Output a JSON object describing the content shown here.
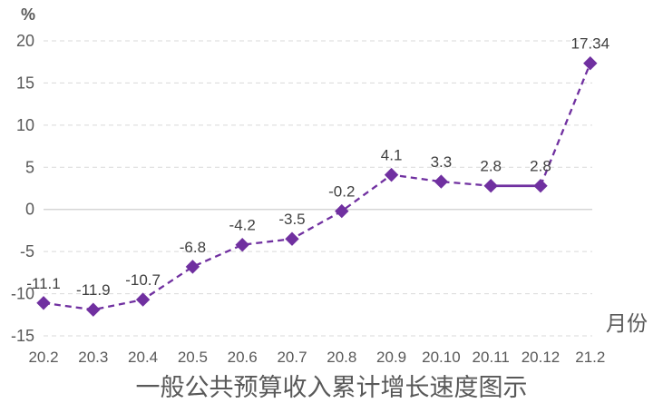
{
  "chart_data": {
    "type": "line",
    "title": "一般公共预算收入累计增长速度图示",
    "y_axis_unit": "%",
    "x_axis_unit": "月份",
    "categories": [
      "20.2",
      "20.3",
      "20.4",
      "20.5",
      "20.6",
      "20.7",
      "20.8",
      "20.9",
      "20.10",
      "20.11",
      "20.12",
      "21.2"
    ],
    "values": [
      -11.1,
      -11.9,
      -10.7,
      -6.8,
      -4.2,
      -3.5,
      -0.2,
      4.1,
      3.3,
      2.8,
      2.8,
      17.34
    ],
    "data_labels": [
      "-11.1",
      "-11.9",
      "-10.7",
      "-6.8",
      "-4.2",
      "-3.5",
      "-0.2",
      "4.1",
      "3.3",
      "2.8",
      "2.8",
      "17.34"
    ],
    "ylim": [
      -15,
      20
    ],
    "y_ticks": [
      20,
      15,
      10,
      5,
      0,
      -5,
      -10,
      -15
    ],
    "grid": "horizontal-dashed",
    "legend": "none",
    "line_style": "dashed",
    "marker": "diamond",
    "solid_segment_between_indices": [
      9,
      10
    ],
    "colors": {
      "line": "#7030A0",
      "marker_fill": "#7030A0",
      "grid": "#D9D9D9",
      "zero_axis": "#CFCFCF",
      "tick_label": "#595959",
      "data_label": "#404040",
      "title": "#595959",
      "background": "#FFFFFF"
    }
  }
}
